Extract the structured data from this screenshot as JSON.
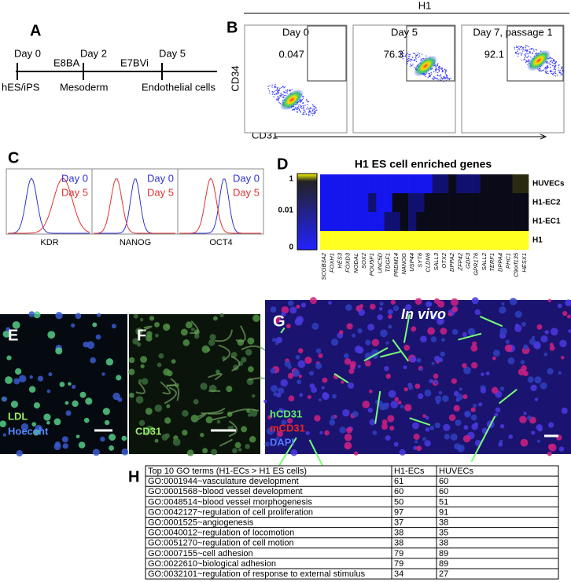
{
  "panel_a": {
    "label": "A",
    "days": [
      "Day 0",
      "Day 2",
      "Day 5"
    ],
    "media": [
      "E8BA",
      "E7BVi"
    ],
    "stages": [
      "hES/iPS",
      "Mesoderm",
      "Endothelial cells"
    ]
  },
  "panel_b": {
    "label": "B",
    "title": "H1",
    "plots": [
      {
        "title": "Day 0",
        "percent": 0.047
      },
      {
        "title": "Day 5",
        "percent": 76.3
      },
      {
        "title": "Day 7, passage 1",
        "percent": 92.1
      }
    ],
    "y_axis": "CD34",
    "x_axis": "CD31"
  },
  "panel_c": {
    "label": "C",
    "legend": [
      "Day 0",
      "Day 5"
    ],
    "markers": [
      "KDR",
      "NANOG",
      "OCT4"
    ]
  },
  "panel_d": {
    "label": "D",
    "title": "H1 ES cell enriched genes",
    "scale": [
      "1",
      "0.01",
      "0"
    ],
    "rows": [
      "HUVECs",
      "H1-EC2",
      "H1-EC1",
      "H1"
    ],
    "genes": [
      "SCGB3A2",
      "FOXH1",
      "HES3",
      "FOXD3",
      "NODAL",
      "SOX2",
      "POU5F1",
      "UNC5D",
      "TDGF1",
      "PRDM14",
      "NANOG",
      "USP44",
      "SYT6",
      "CLDN6",
      "SALL3",
      "OTX2",
      "DPPA2",
      "ZFP42",
      "GDF3",
      "GPR176",
      "SALL2",
      "TERF1",
      "DPPA4",
      "PHC1",
      "C9orf135",
      "HESX1"
    ]
  },
  "panel_e": {
    "label": "E",
    "stains": [
      "LDL",
      "Hoecsht"
    ]
  },
  "panel_f": {
    "label": "F",
    "stains": [
      "CD31"
    ]
  },
  "panel_g": {
    "label": "G",
    "note": "In vivo",
    "stains": [
      "hCD31",
      "mCD31",
      "DAPI"
    ]
  },
  "panel_h": {
    "label": "H",
    "table": {
      "header": [
        "Top 10 GO terms (H1-ECs > H1 ES cells)",
        "H1-ECs",
        "HUVECs"
      ],
      "rows": [
        [
          "GO:0001944~vasculature development",
          61,
          60
        ],
        [
          "GO:0001568~blood vessel development",
          60,
          60
        ],
        [
          "GO:0048514~blood vessel morphogenesis",
          50,
          51
        ],
        [
          "GO:0042127~regulation of cell proliferation",
          97,
          91
        ],
        [
          "GO:0001525~angiogenesis",
          37,
          38
        ],
        [
          "GO:0040012~regulation of locomotion",
          38,
          35
        ],
        [
          "GO:0051270~regulation of cell motion",
          38,
          38
        ],
        [
          "GO:0007155~cell adhesion",
          79,
          89
        ],
        [
          "GO:0022610~biological adhesion",
          79,
          89
        ],
        [
          "GO:0032101~regulation of response to external stimulus",
          34,
          27
        ]
      ]
    }
  }
}
